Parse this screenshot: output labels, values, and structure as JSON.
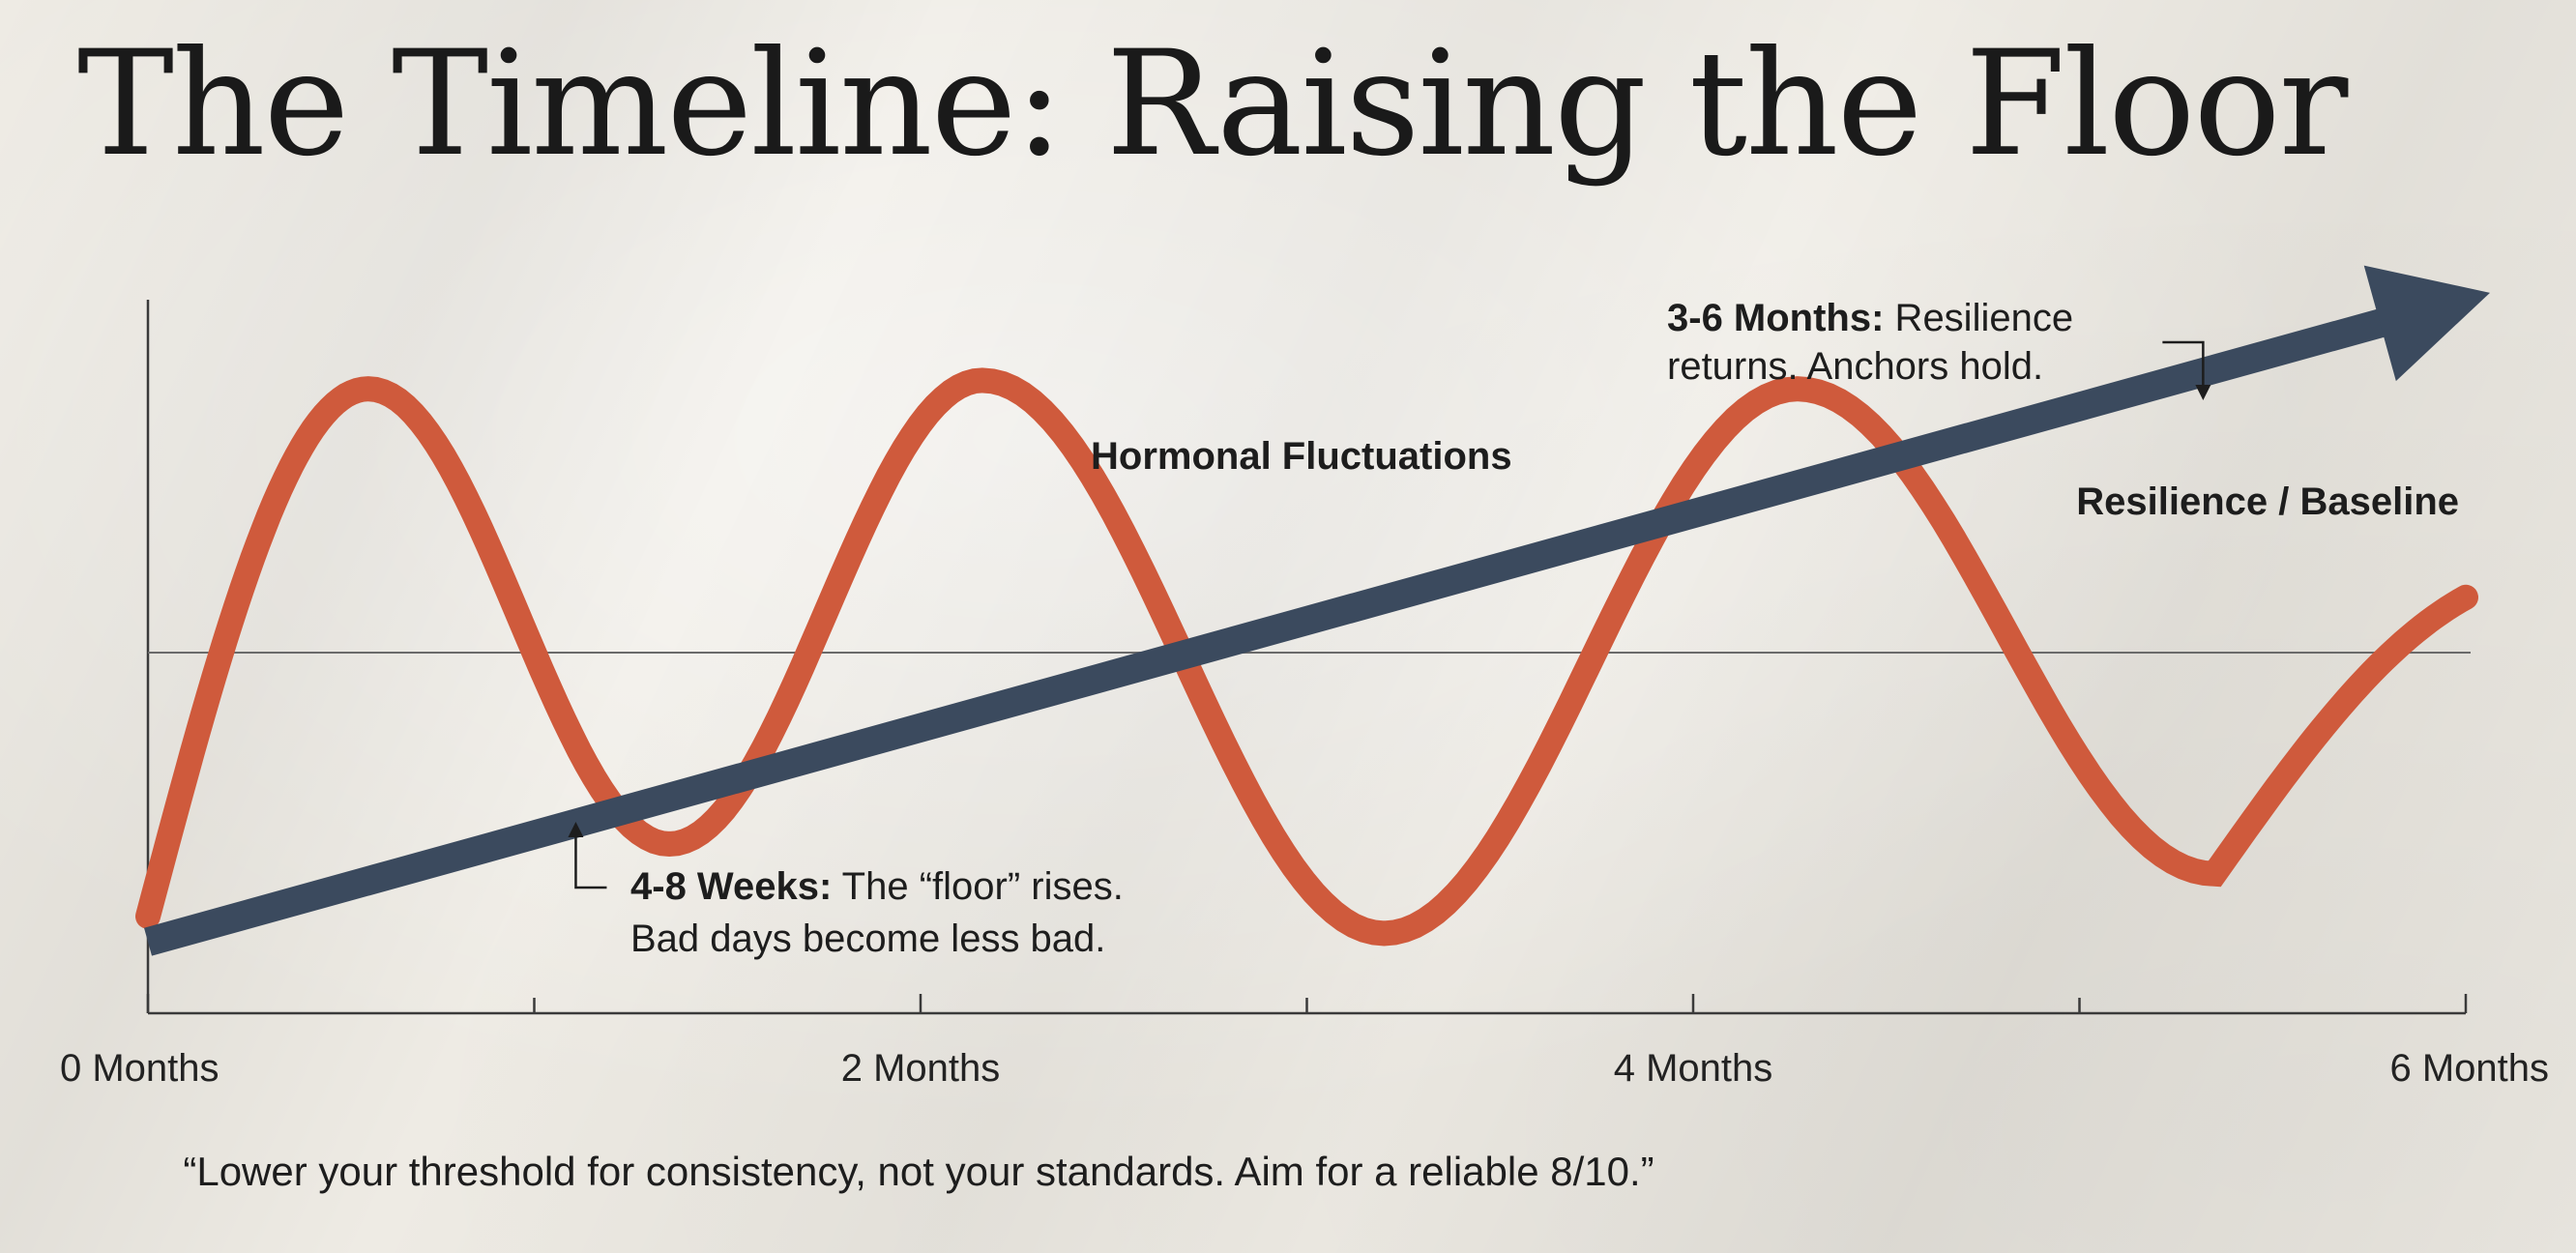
{
  "title": "The Timeline: Raising the Floor",
  "quote": "“Lower your threshold for consistency, not your standards. Aim for a reliable 8/10.”",
  "colors": {
    "fluctuation": "#cf5a3c",
    "baseline": "#3b4a5e",
    "axis": "#3a3a3a"
  },
  "chart_data": {
    "type": "line",
    "x_unit": "months",
    "xlim": [
      0,
      6
    ],
    "x_ticks": [
      0,
      1,
      2,
      3,
      4,
      5,
      6
    ],
    "x_tick_labels": [
      {
        "x": 0,
        "label": "0 Months"
      },
      {
        "x": 2,
        "label": "2 Months"
      },
      {
        "x": 4,
        "label": "4 Months"
      },
      {
        "x": 6,
        "label": "6 Months"
      }
    ],
    "reference_line_y": 0,
    "series": [
      {
        "name": "Hormonal Fluctuations",
        "style": "wave",
        "x": [
          0,
          0.57,
          1.35,
          2.16,
          3.2,
          4.27,
          5.35,
          6
        ],
        "y": [
          -0.62,
          0.62,
          -0.45,
          0.64,
          -0.66,
          0.62,
          -0.52,
          0.13
        ]
      },
      {
        "name": "Resilience / Baseline",
        "style": "arrow",
        "x": [
          0,
          6
        ],
        "y": [
          -0.68,
          0.83
        ]
      }
    ],
    "annotations": [
      {
        "x": 1.1,
        "bold": "4-8 Weeks:",
        "text_line1": " The “floor” rises.",
        "text_line2": "Bad days become less bad."
      },
      {
        "x": 5.25,
        "bold": "3-6 Months:",
        "text_line1": " Resilience",
        "text_line2": "returns. Anchors hold."
      }
    ]
  }
}
